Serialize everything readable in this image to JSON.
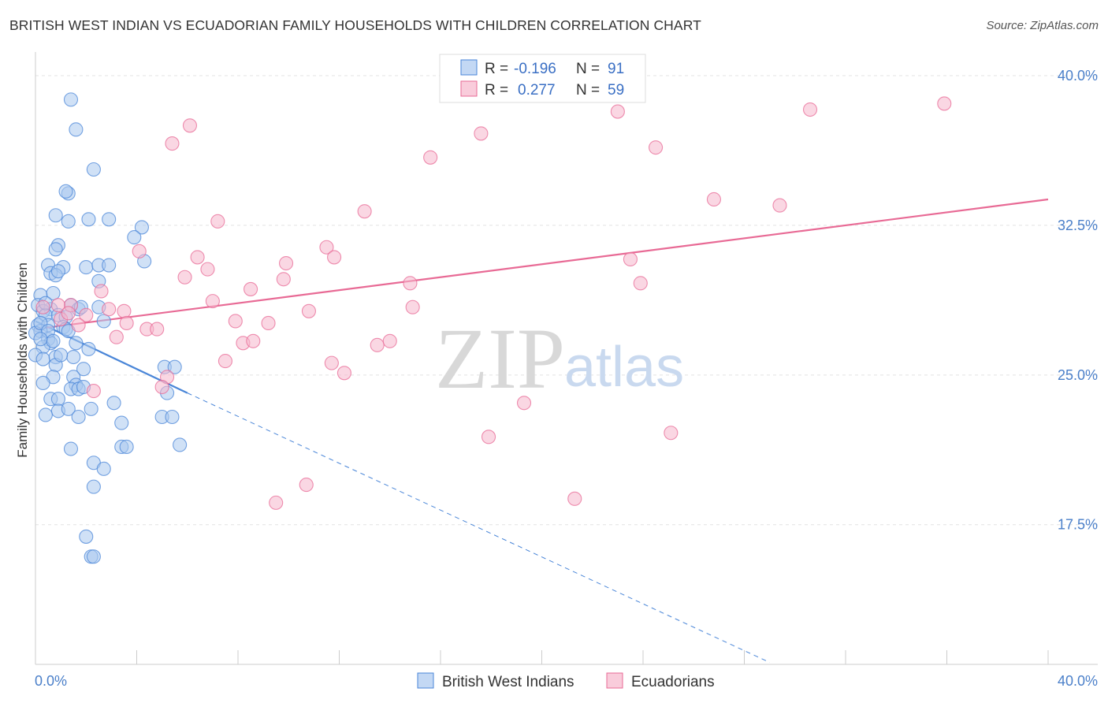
{
  "header": {
    "title": "BRITISH WEST INDIAN VS ECUADORIAN FAMILY HOUSEHOLDS WITH CHILDREN CORRELATION CHART",
    "source": "Source: ZipAtlas.com"
  },
  "watermark": {
    "zip": "ZIP",
    "atlas": "atlas"
  },
  "legend": {
    "row1": {
      "r_label": "R =",
      "r_value": "-0.196",
      "n_label": "N =",
      "n_value": "91"
    },
    "row2": {
      "r_label": "R =",
      "r_value": "0.277",
      "n_label": "N =",
      "n_value": "59"
    }
  },
  "bottom_legend": {
    "series1": "British West Indians",
    "series2": "Ecuadorians"
  },
  "colors": {
    "blue": "#4a86d8",
    "blue_fill": "#a9c8ef",
    "pink": "#e86a95",
    "pink_fill": "#f6b7cc",
    "axis_text": "#4a7fc9",
    "grid": "#e3e3e3"
  },
  "chart_data": {
    "type": "scatter",
    "xlabel": "",
    "ylabel": "Family Households with Children",
    "xlim": [
      0,
      40
    ],
    "ylim": [
      10.5,
      41.5
    ],
    "x_ticks": [
      "0.0%",
      "40.0%"
    ],
    "y_ticks": [
      {
        "value": 40.0,
        "label": "40.0%"
      },
      {
        "value": 32.5,
        "label": "32.5%"
      },
      {
        "value": 25.0,
        "label": "25.0%"
      },
      {
        "value": 17.5,
        "label": "17.5%"
      }
    ],
    "grid": true,
    "series": [
      {
        "name": "British West Indians",
        "color": "#4a86d8",
        "trend": {
          "x": [
            0.0,
            6.0
          ],
          "y": [
            27.7,
            24.1
          ],
          "dashed_to": [
            29.0,
            10.6
          ]
        },
        "points": [
          [
            1.4,
            38.8
          ],
          [
            1.6,
            37.3
          ],
          [
            2.3,
            35.3
          ],
          [
            1.3,
            34.1
          ],
          [
            1.2,
            34.2
          ],
          [
            0.8,
            33.0
          ],
          [
            1.3,
            32.7
          ],
          [
            2.1,
            32.8
          ],
          [
            2.9,
            32.8
          ],
          [
            4.2,
            32.4
          ],
          [
            3.9,
            31.9
          ],
          [
            0.9,
            31.5
          ],
          [
            0.8,
            31.3
          ],
          [
            4.3,
            30.7
          ],
          [
            0.5,
            30.5
          ],
          [
            1.1,
            30.4
          ],
          [
            2.0,
            30.4
          ],
          [
            2.5,
            30.5
          ],
          [
            2.9,
            30.5
          ],
          [
            0.6,
            30.1
          ],
          [
            0.8,
            30.0
          ],
          [
            0.9,
            30.2
          ],
          [
            2.5,
            29.7
          ],
          [
            0.2,
            29.0
          ],
          [
            0.7,
            29.1
          ],
          [
            0.1,
            28.5
          ],
          [
            0.6,
            28.3
          ],
          [
            1.4,
            28.5
          ],
          [
            2.5,
            28.4
          ],
          [
            1.7,
            28.3
          ],
          [
            0.3,
            28.2
          ],
          [
            0.4,
            28.0
          ],
          [
            0.9,
            28.0
          ],
          [
            1.2,
            27.9
          ],
          [
            0.1,
            27.5
          ],
          [
            0.5,
            27.5
          ],
          [
            1.1,
            27.4
          ],
          [
            2.7,
            27.7
          ],
          [
            0.2,
            27.2
          ],
          [
            0.0,
            27.1
          ],
          [
            1.2,
            27.3
          ],
          [
            1.3,
            27.2
          ],
          [
            0.5,
            26.8
          ],
          [
            0.6,
            26.6
          ],
          [
            1.6,
            26.6
          ],
          [
            0.3,
            26.4
          ],
          [
            2.1,
            26.3
          ],
          [
            0.0,
            26.0
          ],
          [
            0.3,
            25.8
          ],
          [
            0.8,
            25.9
          ],
          [
            1.5,
            25.9
          ],
          [
            0.8,
            25.5
          ],
          [
            1.9,
            25.3
          ],
          [
            5.1,
            25.4
          ],
          [
            5.5,
            25.4
          ],
          [
            0.7,
            24.9
          ],
          [
            1.5,
            24.9
          ],
          [
            0.3,
            24.6
          ],
          [
            1.6,
            24.5
          ],
          [
            1.4,
            24.3
          ],
          [
            1.7,
            24.3
          ],
          [
            5.2,
            24.1
          ],
          [
            0.6,
            23.8
          ],
          [
            0.9,
            23.8
          ],
          [
            3.1,
            23.6
          ],
          [
            0.9,
            23.2
          ],
          [
            1.3,
            23.3
          ],
          [
            2.2,
            23.3
          ],
          [
            0.4,
            23.0
          ],
          [
            1.7,
            22.9
          ],
          [
            5.0,
            22.9
          ],
          [
            5.4,
            22.9
          ],
          [
            3.4,
            22.6
          ],
          [
            1.4,
            21.3
          ],
          [
            3.4,
            21.4
          ],
          [
            3.6,
            21.4
          ],
          [
            5.7,
            21.5
          ],
          [
            2.3,
            20.6
          ],
          [
            2.7,
            20.3
          ],
          [
            2.3,
            19.4
          ],
          [
            2.0,
            16.9
          ],
          [
            2.2,
            15.9
          ],
          [
            2.3,
            15.9
          ],
          [
            0.2,
            27.6
          ],
          [
            0.5,
            27.2
          ],
          [
            1.0,
            26.0
          ],
          [
            0.4,
            28.6
          ],
          [
            1.8,
            28.4
          ],
          [
            0.7,
            26.7
          ],
          [
            1.9,
            24.4
          ],
          [
            0.2,
            26.8
          ]
        ]
      },
      {
        "name": "Ecuadorians",
        "color": "#e86a95",
        "trend": {
          "x": [
            0.0,
            40.0
          ],
          "y": [
            27.3,
            33.8
          ]
        },
        "points": [
          [
            35.9,
            38.6
          ],
          [
            30.6,
            38.3
          ],
          [
            23.0,
            38.2
          ],
          [
            6.1,
            37.5
          ],
          [
            17.6,
            37.1
          ],
          [
            5.4,
            36.6
          ],
          [
            24.5,
            36.4
          ],
          [
            15.6,
            35.9
          ],
          [
            26.8,
            33.8
          ],
          [
            29.4,
            33.5
          ],
          [
            13.0,
            33.2
          ],
          [
            7.2,
            32.7
          ],
          [
            11.5,
            31.4
          ],
          [
            4.1,
            31.2
          ],
          [
            6.4,
            30.9
          ],
          [
            11.8,
            30.9
          ],
          [
            9.9,
            30.6
          ],
          [
            6.8,
            30.3
          ],
          [
            23.5,
            30.8
          ],
          [
            5.9,
            29.9
          ],
          [
            9.8,
            29.8
          ],
          [
            14.8,
            29.6
          ],
          [
            23.9,
            29.6
          ],
          [
            8.5,
            29.3
          ],
          [
            2.6,
            29.2
          ],
          [
            7.0,
            28.7
          ],
          [
            1.4,
            28.5
          ],
          [
            2.9,
            28.3
          ],
          [
            3.5,
            28.2
          ],
          [
            10.8,
            28.2
          ],
          [
            14.9,
            28.4
          ],
          [
            2.0,
            28.0
          ],
          [
            1.0,
            27.8
          ],
          [
            7.9,
            27.7
          ],
          [
            9.2,
            27.6
          ],
          [
            3.6,
            27.6
          ],
          [
            1.7,
            27.5
          ],
          [
            4.4,
            27.3
          ],
          [
            4.8,
            27.3
          ],
          [
            0.3,
            28.4
          ],
          [
            0.9,
            28.5
          ],
          [
            1.3,
            28.1
          ],
          [
            3.2,
            26.9
          ],
          [
            8.2,
            26.6
          ],
          [
            8.6,
            26.7
          ],
          [
            13.5,
            26.5
          ],
          [
            14.0,
            26.7
          ],
          [
            7.5,
            25.7
          ],
          [
            11.7,
            25.6
          ],
          [
            12.2,
            25.1
          ],
          [
            5.2,
            24.9
          ],
          [
            5.0,
            24.4
          ],
          [
            2.3,
            24.2
          ],
          [
            19.3,
            23.6
          ],
          [
            17.9,
            21.9
          ],
          [
            25.1,
            22.1
          ],
          [
            10.7,
            19.5
          ],
          [
            9.5,
            18.6
          ],
          [
            21.3,
            18.8
          ]
        ]
      }
    ]
  }
}
